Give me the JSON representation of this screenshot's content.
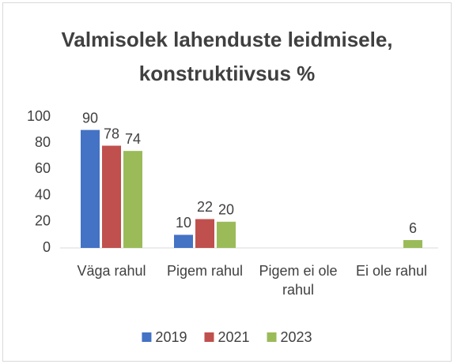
{
  "chart_data": {
    "type": "bar",
    "title": "Valmisolek lahenduste leidmisele, konstruktiivsus %",
    "categories": [
      "Väga rahul",
      "Pigem rahul",
      "Pigem ei ole rahul",
      "Ei ole rahul"
    ],
    "series": [
      {
        "name": "2019",
        "color": "#4472c4",
        "values": [
          90,
          10,
          null,
          null
        ]
      },
      {
        "name": "2021",
        "color": "#c0504d",
        "values": [
          78,
          22,
          null,
          null
        ]
      },
      {
        "name": "2023",
        "color": "#9bbb59",
        "values": [
          74,
          20,
          null,
          6
        ]
      }
    ],
    "ylim": [
      0,
      100
    ],
    "yticks": [
      0,
      20,
      40,
      60,
      80,
      100
    ],
    "grid": false,
    "legend": "bottom"
  }
}
